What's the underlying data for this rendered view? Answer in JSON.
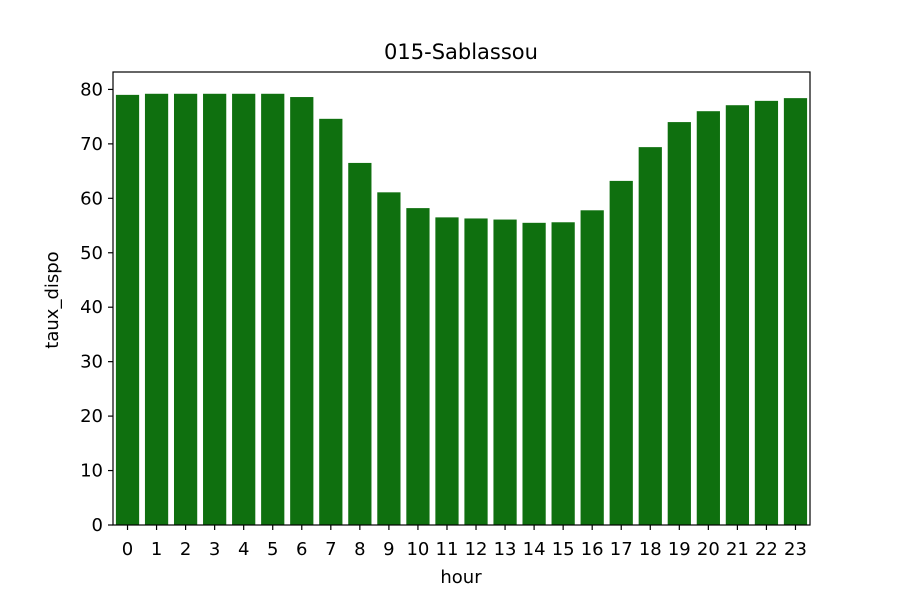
{
  "chart_data": {
    "type": "bar",
    "title": "015-Sablassou",
    "xlabel": "hour",
    "ylabel": "taux_dispo",
    "categories": [
      "0",
      "1",
      "2",
      "3",
      "4",
      "5",
      "6",
      "7",
      "8",
      "9",
      "10",
      "11",
      "12",
      "13",
      "14",
      "15",
      "16",
      "17",
      "18",
      "19",
      "20",
      "21",
      "22",
      "23"
    ],
    "values": [
      79.0,
      79.2,
      79.2,
      79.2,
      79.2,
      79.2,
      78.6,
      74.6,
      66.5,
      61.1,
      58.2,
      56.5,
      56.3,
      56.1,
      55.5,
      55.6,
      57.8,
      63.2,
      69.4,
      74.0,
      76.0,
      77.1,
      77.9,
      78.4
    ],
    "ylim": [
      0,
      83.2
    ],
    "yticks": [
      0,
      10,
      20,
      30,
      40,
      50,
      60,
      70,
      80
    ],
    "bar_color": "#0f700f",
    "grid": false,
    "legend": "none"
  }
}
